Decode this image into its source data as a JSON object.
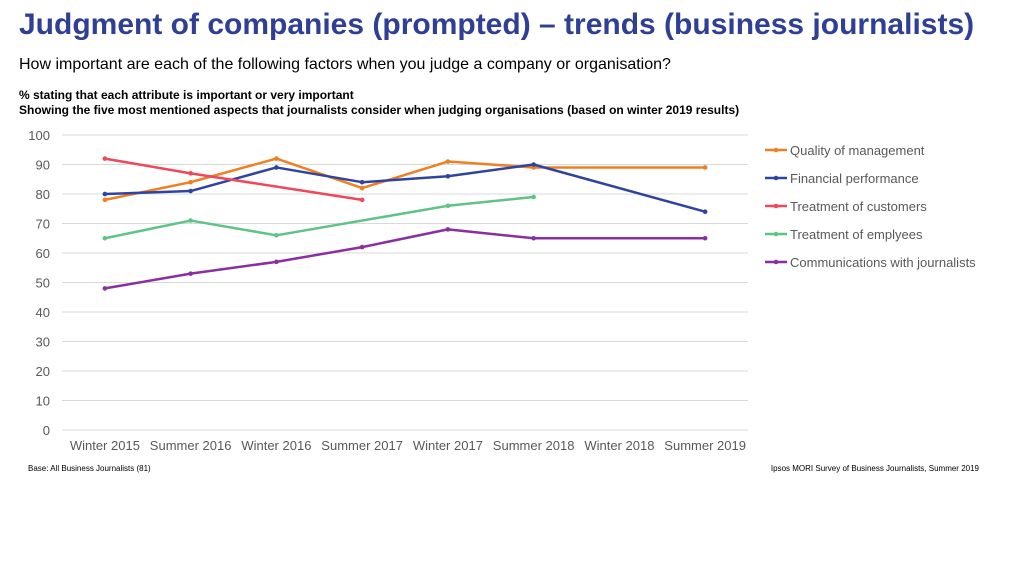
{
  "header": {
    "title": "Judgment of companies (prompted) – trends (business journalists)",
    "subtitle": "How important are each of the following factors when you judge a company or organisation?",
    "note1": "% stating that each attribute is important or very important",
    "note2": "Showing the five most mentioned aspects that journalists consider when judging organisations (based on winter 2019 results)"
  },
  "footer": {
    "base": "Base: All Business Journalists (81)",
    "source": "Ipsos MORI Survey of Business Journalists, Summer 2019"
  },
  "chart_data": {
    "type": "line",
    "categories": [
      "Winter 2015",
      "Summer 2016",
      "Winter 2016",
      "Summer 2017",
      "Winter 2017",
      "Summer 2018",
      "Winter 2018",
      "Summer 2019"
    ],
    "ylim": [
      0,
      100
    ],
    "yticks": [
      0,
      10,
      20,
      30,
      40,
      50,
      60,
      70,
      80,
      90,
      100
    ],
    "grid": true,
    "legend": "right",
    "series": [
      {
        "name": "Quality of management",
        "color": "#f07f22",
        "values": [
          78,
          84,
          92,
          82,
          91,
          89,
          null,
          89
        ]
      },
      {
        "name": "Financial performance",
        "color": "#2e44a0",
        "values": [
          80,
          81,
          89,
          84,
          86,
          90,
          null,
          74
        ]
      },
      {
        "name": "Treatment of customers",
        "color": "#f0485a",
        "values": [
          92,
          87,
          null,
          78,
          null,
          null,
          null,
          null
        ]
      },
      {
        "name": "Treatment of emplyees",
        "color": "#5cc486",
        "values": [
          65,
          71,
          66,
          null,
          76,
          79,
          null,
          null
        ]
      },
      {
        "name": "Communications with journalists",
        "color": "#8a2fa0",
        "values": [
          48,
          53,
          57,
          62,
          68,
          65,
          null,
          65
        ]
      }
    ]
  }
}
